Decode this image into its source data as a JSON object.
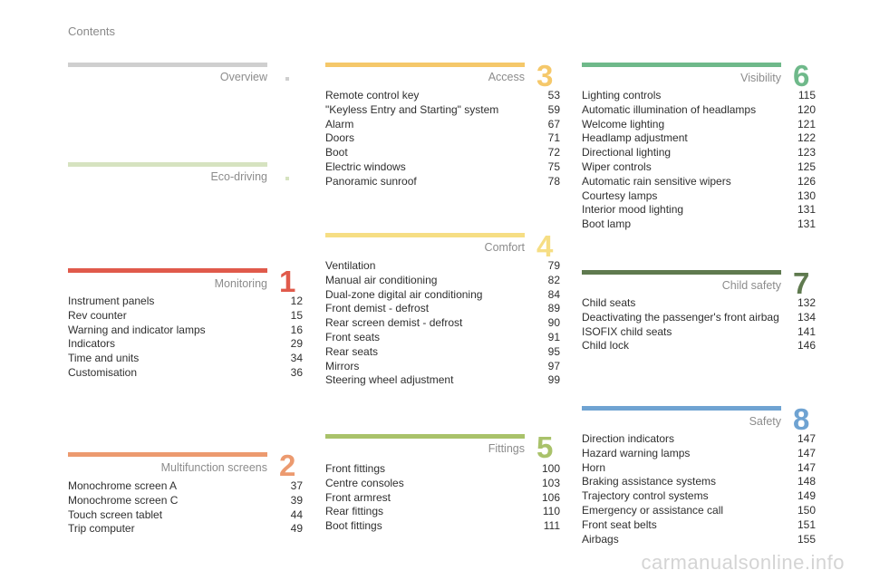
{
  "page": {
    "title": "Contents"
  },
  "colors": {
    "overview": "#cfcfcf",
    "eco": "#d6e3c0",
    "monitoring": "#e05a4b",
    "multifunction": "#ec9a6f",
    "access": "#f5c86a",
    "comfort": "#f6de84",
    "fittings": "#a9c26a",
    "visibility": "#6fb98a",
    "child": "#5f7a4f",
    "safety": "#6fa3d2"
  },
  "sections": {
    "overview": {
      "title": "Overview"
    },
    "eco": {
      "title": "Eco-driving"
    },
    "monitoring": {
      "number": "1",
      "title": "Monitoring",
      "entries": [
        {
          "label": "Instrument panels",
          "page": "12"
        },
        {
          "label": "Rev counter",
          "page": "15"
        },
        {
          "label": "Warning and indicator lamps",
          "page": "16"
        },
        {
          "label": "Indicators",
          "page": "29"
        },
        {
          "label": "Time and units",
          "page": "34"
        },
        {
          "label": "Customisation",
          "page": "36"
        }
      ]
    },
    "multifunction": {
      "number": "2",
      "title": "Multifunction screens",
      "entries": [
        {
          "label": "Monochrome screen A",
          "page": "37"
        },
        {
          "label": "Monochrome screen C",
          "page": "39"
        },
        {
          "label": "Touch screen tablet",
          "page": "44"
        },
        {
          "label": "Trip computer",
          "page": "49"
        }
      ]
    },
    "access": {
      "number": "3",
      "title": "Access",
      "entries": [
        {
          "label": "Remote control key",
          "page": "53"
        },
        {
          "label": "\"Keyless Entry and Starting\" system",
          "page": "59"
        },
        {
          "label": "Alarm",
          "page": "67"
        },
        {
          "label": "Doors",
          "page": "71"
        },
        {
          "label": "Boot",
          "page": "72"
        },
        {
          "label": "Electric windows",
          "page": "75"
        },
        {
          "label": "Panoramic sunroof",
          "page": "78"
        }
      ]
    },
    "comfort": {
      "number": "4",
      "title": "Comfort",
      "entries": [
        {
          "label": "Ventilation",
          "page": "79"
        },
        {
          "label": "Manual air conditioning",
          "page": "82"
        },
        {
          "label": "Dual-zone digital air conditioning",
          "page": "84"
        },
        {
          "label": "Front demist - defrost",
          "page": "89"
        },
        {
          "label": "Rear screen demist - defrost",
          "page": "90"
        },
        {
          "label": "Front seats",
          "page": "91"
        },
        {
          "label": "Rear seats",
          "page": "95"
        },
        {
          "label": "Mirrors",
          "page": "97"
        },
        {
          "label": "Steering wheel adjustment",
          "page": "99"
        }
      ]
    },
    "fittings": {
      "number": "5",
      "title": "Fittings",
      "entries": [
        {
          "label": "Front fittings",
          "page": "100"
        },
        {
          "label": "Centre consoles",
          "page": "103"
        },
        {
          "label": "Front armrest",
          "page": "106"
        },
        {
          "label": "Rear fittings",
          "page": "110"
        },
        {
          "label": "Boot fittings",
          "page": "111"
        }
      ]
    },
    "visibility": {
      "number": "6",
      "title": "Visibility",
      "entries": [
        {
          "label": "Lighting controls",
          "page": "115"
        },
        {
          "label": "Automatic illumination of headlamps",
          "page": "120"
        },
        {
          "label": "Welcome lighting",
          "page": "121"
        },
        {
          "label": "Headlamp adjustment",
          "page": "122"
        },
        {
          "label": "Directional lighting",
          "page": "123"
        },
        {
          "label": "Wiper controls",
          "page": "125"
        },
        {
          "label": "Automatic rain sensitive wipers",
          "page": "126"
        },
        {
          "label": "Courtesy lamps",
          "page": "130"
        },
        {
          "label": "Interior mood lighting",
          "page": "131"
        },
        {
          "label": "Boot lamp",
          "page": "131"
        }
      ]
    },
    "child": {
      "number": "7",
      "title": "Child safety",
      "entries": [
        {
          "label": "Child seats",
          "page": "132"
        },
        {
          "label": "Deactivating the passenger's front airbag",
          "page": "134"
        },
        {
          "label": "ISOFIX child seats",
          "page": "141"
        },
        {
          "label": "Child lock",
          "page": "146"
        }
      ]
    },
    "safety": {
      "number": "8",
      "title": "Safety",
      "entries": [
        {
          "label": "Direction indicators",
          "page": "147"
        },
        {
          "label": "Hazard warning lamps",
          "page": "147"
        },
        {
          "label": "Horn",
          "page": "147"
        },
        {
          "label": "Braking assistance systems",
          "page": "148"
        },
        {
          "label": "Trajectory control systems",
          "page": "149"
        },
        {
          "label": "Emergency or assistance call",
          "page": "150"
        },
        {
          "label": "Front seat belts",
          "page": "151"
        },
        {
          "label": "Airbags",
          "page": "155"
        }
      ]
    }
  },
  "footer": {
    "watermark": "carmanualsonline.info"
  }
}
